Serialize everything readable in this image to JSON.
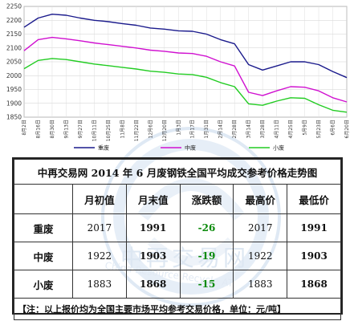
{
  "chart_data": {
    "type": "line",
    "title": "",
    "xlabel": "",
    "ylabel": "",
    "ylim": [
      1850,
      2250
    ],
    "yticks": [
      1850,
      1900,
      1950,
      2000,
      2050,
      2100,
      2150,
      2200,
      2250
    ],
    "grid": true,
    "legend_position": "bottom",
    "x": [
      "8月2日",
      "8月16日",
      "8月30日",
      "9月13日",
      "9月27日",
      "10月11日",
      "10月25日",
      "11月8日",
      "11月22日",
      "12月6日",
      "12月20日",
      "1月3日",
      "1月17日",
      "1月31日",
      "2月14日",
      "2月28日",
      "3月14日",
      "3月28日",
      "4月11日",
      "4月25日",
      "5月9日",
      "5月23日",
      "6月6日",
      "6月20日"
    ],
    "series": [
      {
        "name": "重废",
        "color": "#1a1a8c",
        "values": [
          2175,
          2208,
          2222,
          2218,
          2208,
          2200,
          2195,
          2188,
          2182,
          2172,
          2168,
          2162,
          2160,
          2150,
          2130,
          2115,
          2040,
          2020,
          2035,
          2050,
          2050,
          2040,
          2015,
          1993
        ]
      },
      {
        "name": "中废",
        "color": "#d010d0",
        "values": [
          2090,
          2130,
          2138,
          2133,
          2126,
          2118,
          2112,
          2106,
          2100,
          2092,
          2088,
          2082,
          2080,
          2070,
          2050,
          2035,
          1940,
          1928,
          1945,
          1960,
          1958,
          1945,
          1920,
          1905
        ]
      },
      {
        "name": "小废",
        "color": "#22cc22",
        "values": [
          2025,
          2055,
          2062,
          2058,
          2050,
          2042,
          2036,
          2030,
          2024,
          2016,
          2012,
          2006,
          2004,
          1994,
          1975,
          1960,
          1898,
          1893,
          1908,
          1920,
          1918,
          1895,
          1875,
          1868
        ]
      }
    ]
  },
  "watermark": {
    "text": "中再交易网",
    "sub": "China Resource Recycle AT"
  },
  "table": {
    "title": "中再交易网 2014 年 6 月废钢铁全国平均成交参考价格走势图",
    "headers": [
      "月初值",
      "月末值",
      "涨跌额",
      "最高价",
      "最低价"
    ],
    "rows": [
      {
        "label": "重废",
        "values": [
          "2017",
          "1991",
          "-26",
          "2017",
          "1991"
        ]
      },
      {
        "label": "中废",
        "values": [
          "1922",
          "1903",
          "-19",
          "1922",
          "1903"
        ]
      },
      {
        "label": "小废",
        "values": [
          "1883",
          "1868",
          "-15",
          "1883",
          "1868"
        ]
      }
    ],
    "note": "【注：以上报价均为全国主要市场平均参考交易价格，单位：元/吨】"
  }
}
